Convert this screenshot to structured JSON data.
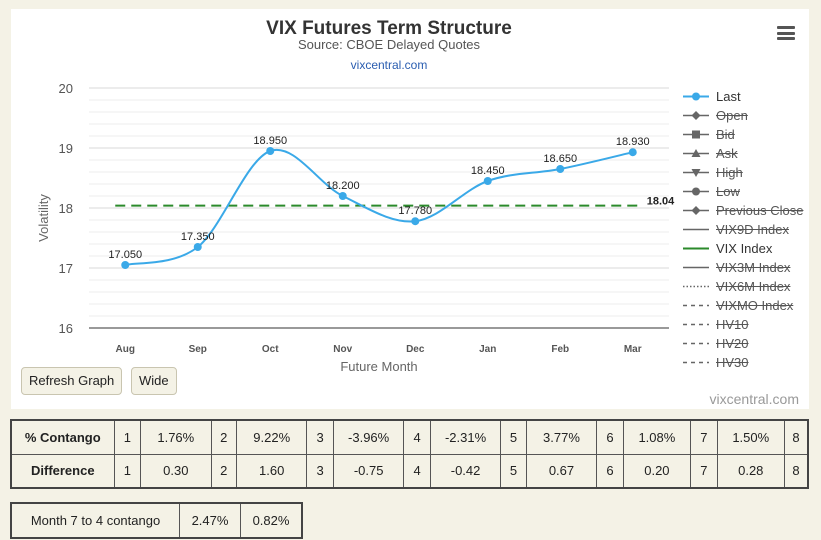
{
  "chart_data": {
    "type": "line",
    "title": "VIX Futures Term Structure",
    "subtitle": "Source: CBOE Delayed Quotes",
    "source_link": "vixcentral.com",
    "xlabel": "Future Month",
    "ylabel": "Volatility",
    "categories": [
      "Aug",
      "Sep",
      "Oct",
      "Nov",
      "Dec",
      "Jan",
      "Feb",
      "Mar"
    ],
    "ylim": [
      16,
      20
    ],
    "yticks": [
      16,
      17,
      18,
      19,
      20
    ],
    "grid": true,
    "legend_position": "right",
    "series": [
      {
        "name": "Last",
        "values": [
          17.05,
          17.35,
          18.95,
          18.2,
          17.78,
          18.45,
          18.65,
          18.93
        ],
        "labels": [
          "17.050",
          "17.350",
          "18.950",
          "18.200",
          "17.780",
          "18.450",
          "18.650",
          "18.930"
        ],
        "color": "#3aa9e8"
      },
      {
        "name": "VIX Index",
        "value": 18.04,
        "label": "18.04",
        "color": "#2b8a2b",
        "style": "dashed"
      }
    ],
    "credit": "vixcentral.com"
  },
  "legend": [
    {
      "name": "Last",
      "marker": "circle",
      "line": "solid",
      "active": true,
      "color": "#3aa9e8"
    },
    {
      "name": "Open",
      "marker": "diamond",
      "line": "solid",
      "active": false,
      "color": "#666"
    },
    {
      "name": "Bid",
      "marker": "square",
      "line": "solid",
      "active": false,
      "color": "#666"
    },
    {
      "name": "Ask",
      "marker": "triangle",
      "line": "solid",
      "active": false,
      "color": "#666"
    },
    {
      "name": "High",
      "marker": "triangle-down",
      "line": "solid",
      "active": false,
      "color": "#666"
    },
    {
      "name": "Low",
      "marker": "circle",
      "line": "solid",
      "active": false,
      "color": "#666"
    },
    {
      "name": "Previous Close",
      "marker": "diamond",
      "line": "solid",
      "active": false,
      "color": "#666"
    },
    {
      "name": "VIX9D Index",
      "marker": "none",
      "line": "solid",
      "active": false,
      "color": "#666"
    },
    {
      "name": "VIX Index",
      "marker": "none",
      "line": "solid",
      "active": true,
      "color": "#2b8a2b"
    },
    {
      "name": "VIX3M Index",
      "marker": "none",
      "line": "solid",
      "active": false,
      "color": "#666"
    },
    {
      "name": "VIX6M Index",
      "marker": "none",
      "line": "dotted",
      "active": false,
      "color": "#666"
    },
    {
      "name": "VIXMO Index",
      "marker": "none",
      "line": "dashed",
      "active": false,
      "color": "#666"
    },
    {
      "name": "HV10",
      "marker": "none",
      "line": "dashed",
      "active": false,
      "color": "#666"
    },
    {
      "name": "HV20",
      "marker": "none",
      "line": "dashed",
      "active": false,
      "color": "#666"
    },
    {
      "name": "HV30",
      "marker": "none",
      "line": "dashed",
      "active": false,
      "color": "#666"
    }
  ],
  "buttons": {
    "refresh": "Refresh Graph",
    "wide": "Wide"
  },
  "contango": {
    "label": "% Contango",
    "cells": [
      {
        "n": "1",
        "v": "1.76%"
      },
      {
        "n": "2",
        "v": "9.22%"
      },
      {
        "n": "3",
        "v": "-3.96%"
      },
      {
        "n": "4",
        "v": "-2.31%"
      },
      {
        "n": "5",
        "v": "3.77%"
      },
      {
        "n": "6",
        "v": "1.08%"
      },
      {
        "n": "7",
        "v": "1.50%"
      }
    ],
    "last": "8"
  },
  "difference": {
    "label": "Difference",
    "cells": [
      {
        "n": "1",
        "v": "0.30"
      },
      {
        "n": "2",
        "v": "1.60"
      },
      {
        "n": "3",
        "v": "-0.75"
      },
      {
        "n": "4",
        "v": "-0.42"
      },
      {
        "n": "5",
        "v": "0.67"
      },
      {
        "n": "6",
        "v": "0.20"
      },
      {
        "n": "7",
        "v": "0.28"
      }
    ],
    "last": "8"
  },
  "month74": {
    "label": "Month 7 to 4 contango",
    "v1": "2.47%",
    "v2": "0.82%"
  }
}
